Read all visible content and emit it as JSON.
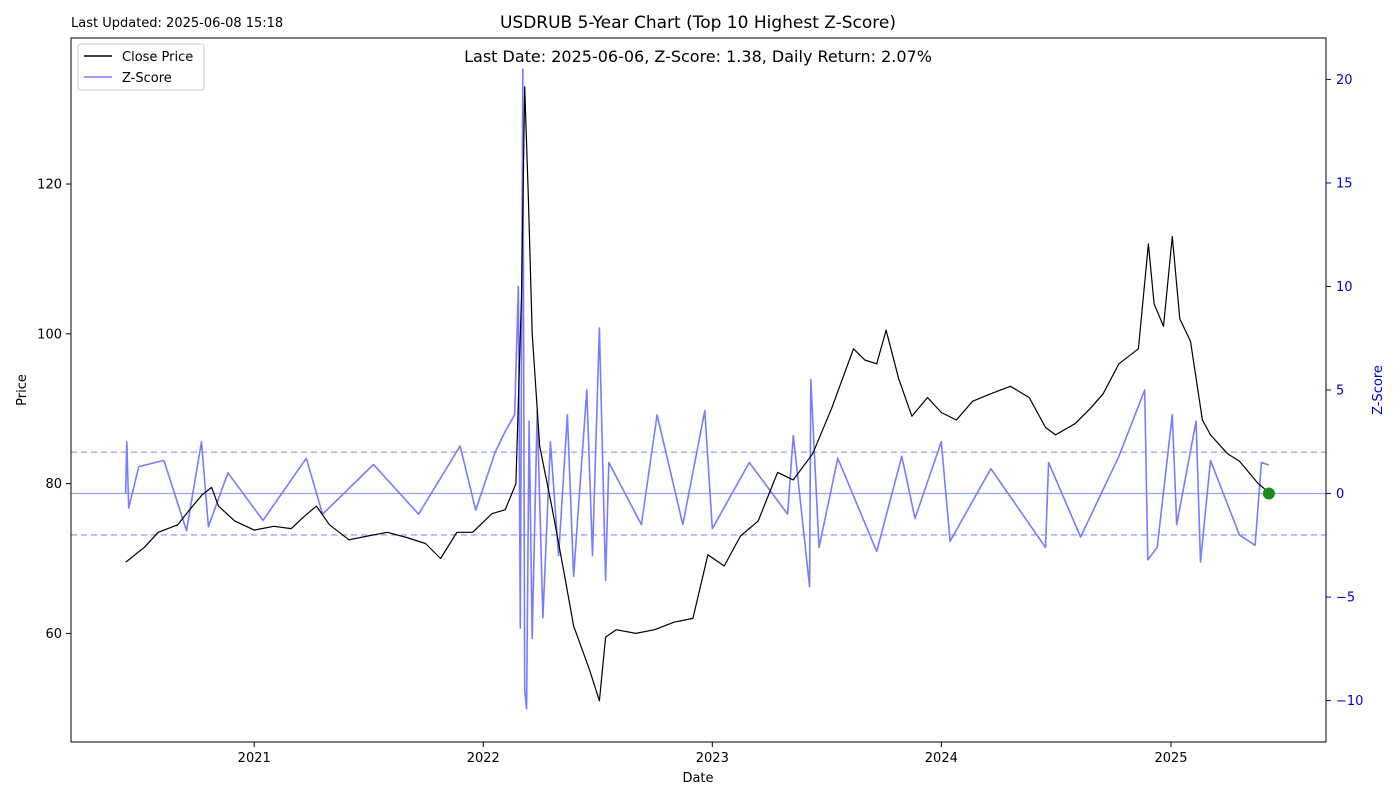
{
  "header": {
    "updated": "Last Updated: 2025-06-08 15:18",
    "title": "USDRUB 5-Year Chart (Top 10 Highest Z-Score)",
    "annotation": "Last Date: 2025-06-06, Z-Score: 1.38, Daily Return: 2.07%"
  },
  "colors": {
    "price": "#000000",
    "zscore": "#7b7bff",
    "threshold": "#9f9fff",
    "marker": "#1a8a1a",
    "right_axis": "#0000cc"
  },
  "chart_data": {
    "type": "line",
    "title": "USDRUB 5-Year Chart (Top 10 Highest Z-Score)",
    "xlabel": "Date",
    "ylabel": "Price",
    "y2label": "Z-Score",
    "x_ticks": [
      "2021",
      "2022",
      "2023",
      "2024",
      "2025"
    ],
    "x_range": [
      "2020-03-15",
      "2025-09-05"
    ],
    "ylim": [
      45.5,
      139.5
    ],
    "y_ticks": [
      60,
      80,
      100,
      120
    ],
    "y2lim": [
      -12.0,
      22.0
    ],
    "y2_ticks": [
      "−10",
      "−5",
      "0",
      "5",
      "10",
      "15",
      "20"
    ],
    "legend": {
      "placement": "top-left",
      "entries": [
        "Close Price",
        "Z-Score"
      ]
    },
    "grid": false,
    "thresholds": [
      2.0,
      0.0,
      -2.0
    ],
    "last_point": {
      "date": "2025-06-06",
      "zscore": 1.38,
      "daily_return_pct": 2.07
    },
    "series": [
      {
        "name": "Close Price",
        "axis": "left",
        "points": [
          [
            "2020-06-10",
            69.5
          ],
          [
            "2020-07-10",
            71.5
          ],
          [
            "2020-08-01",
            73.5
          ],
          [
            "2020-09-01",
            74.5
          ],
          [
            "2020-09-20",
            76.5
          ],
          [
            "2020-10-10",
            78.5
          ],
          [
            "2020-10-25",
            79.5
          ],
          [
            "2020-11-05",
            77.0
          ],
          [
            "2020-12-01",
            75.0
          ],
          [
            "2021-01-01",
            73.8
          ],
          [
            "2021-02-01",
            74.3
          ],
          [
            "2021-03-01",
            74.0
          ],
          [
            "2021-03-20",
            75.5
          ],
          [
            "2021-04-10",
            77.0
          ],
          [
            "2021-05-01",
            74.5
          ],
          [
            "2021-06-01",
            72.5
          ],
          [
            "2021-07-01",
            73.0
          ],
          [
            "2021-08-01",
            73.5
          ],
          [
            "2021-09-01",
            72.8
          ],
          [
            "2021-10-01",
            72.0
          ],
          [
            "2021-10-25",
            70.0
          ],
          [
            "2021-11-20",
            73.5
          ],
          [
            "2021-12-15",
            73.5
          ],
          [
            "2022-01-15",
            76.0
          ],
          [
            "2022-02-05",
            76.5
          ],
          [
            "2022-02-22",
            80.0
          ],
          [
            "2022-03-03",
            105.0
          ],
          [
            "2022-03-08",
            133.0
          ],
          [
            "2022-03-14",
            118.0
          ],
          [
            "2022-03-20",
            100.0
          ],
          [
            "2022-04-01",
            85.0
          ],
          [
            "2022-04-20",
            77.0
          ],
          [
            "2022-05-10",
            68.0
          ],
          [
            "2022-05-25",
            61.0
          ],
          [
            "2022-06-20",
            55.0
          ],
          [
            "2022-07-05",
            51.0
          ],
          [
            "2022-07-15",
            59.5
          ],
          [
            "2022-08-01",
            60.5
          ],
          [
            "2022-09-01",
            60.0
          ],
          [
            "2022-10-01",
            60.5
          ],
          [
            "2022-11-01",
            61.5
          ],
          [
            "2022-12-01",
            62.0
          ],
          [
            "2022-12-25",
            70.5
          ],
          [
            "2023-01-20",
            69.0
          ],
          [
            "2023-02-15",
            73.0
          ],
          [
            "2023-03-15",
            75.0
          ],
          [
            "2023-04-15",
            81.5
          ],
          [
            "2023-05-10",
            80.5
          ],
          [
            "2023-06-10",
            84.0
          ],
          [
            "2023-07-10",
            90.0
          ],
          [
            "2023-08-14",
            98.0
          ],
          [
            "2023-09-01",
            96.5
          ],
          [
            "2023-09-20",
            96.0
          ],
          [
            "2023-10-05",
            100.5
          ],
          [
            "2023-10-25",
            94.0
          ],
          [
            "2023-11-15",
            89.0
          ],
          [
            "2023-12-10",
            91.5
          ],
          [
            "2024-01-01",
            89.5
          ],
          [
            "2024-01-25",
            88.5
          ],
          [
            "2024-02-20",
            91.0
          ],
          [
            "2024-03-20",
            92.0
          ],
          [
            "2024-04-20",
            93.0
          ],
          [
            "2024-05-20",
            91.5
          ],
          [
            "2024-06-15",
            87.5
          ],
          [
            "2024-07-01",
            86.5
          ],
          [
            "2024-08-01",
            88.0
          ],
          [
            "2024-08-25",
            90.0
          ],
          [
            "2024-09-15",
            92.0
          ],
          [
            "2024-10-10",
            96.0
          ],
          [
            "2024-11-10",
            98.0
          ],
          [
            "2024-11-26",
            112.0
          ],
          [
            "2024-12-05",
            104.0
          ],
          [
            "2024-12-20",
            101.0
          ],
          [
            "2025-01-03",
            113.0
          ],
          [
            "2025-01-15",
            102.0
          ],
          [
            "2025-02-01",
            99.0
          ],
          [
            "2025-02-20",
            88.5
          ],
          [
            "2025-03-05",
            86.5
          ],
          [
            "2025-04-01",
            84.0
          ],
          [
            "2025-04-20",
            83.0
          ],
          [
            "2025-05-20",
            80.0
          ],
          [
            "2025-06-06",
            78.8
          ]
        ]
      },
      {
        "name": "Z-Score",
        "axis": "right",
        "points": [
          [
            "2020-06-10",
            0.0
          ],
          [
            "2020-06-12",
            2.5
          ],
          [
            "2020-06-15",
            -0.7
          ],
          [
            "2020-07-01",
            1.3
          ],
          [
            "2020-08-10",
            1.6
          ],
          [
            "2020-09-15",
            -1.8
          ],
          [
            "2020-10-09",
            2.5
          ],
          [
            "2020-10-20",
            -1.6
          ],
          [
            "2020-11-20",
            1.0
          ],
          [
            "2021-01-15",
            -1.3
          ],
          [
            "2021-03-25",
            1.7
          ],
          [
            "2021-04-20",
            -1.0
          ],
          [
            "2021-07-10",
            1.4
          ],
          [
            "2021-09-20",
            -1.0
          ],
          [
            "2021-11-25",
            2.3
          ],
          [
            "2021-12-20",
            -0.8
          ],
          [
            "2022-01-20",
            2.0
          ],
          [
            "2022-02-05",
            3.0
          ],
          [
            "2022-02-20",
            3.8
          ],
          [
            "2022-02-26",
            10.0
          ],
          [
            "2022-03-01",
            -6.5
          ],
          [
            "2022-03-05",
            20.5
          ],
          [
            "2022-03-08",
            -9.5
          ],
          [
            "2022-03-11",
            -10.4
          ],
          [
            "2022-03-15",
            3.5
          ],
          [
            "2022-03-20",
            -7.0
          ],
          [
            "2022-03-28",
            4.0
          ],
          [
            "2022-04-06",
            -6.0
          ],
          [
            "2022-04-18",
            2.5
          ],
          [
            "2022-05-01",
            -3.0
          ],
          [
            "2022-05-15",
            3.8
          ],
          [
            "2022-05-25",
            -4.0
          ],
          [
            "2022-06-15",
            5.0
          ],
          [
            "2022-06-24",
            -3.0
          ],
          [
            "2022-07-05",
            8.0
          ],
          [
            "2022-07-15",
            -4.2
          ],
          [
            "2022-07-20",
            1.5
          ],
          [
            "2022-09-10",
            -1.5
          ],
          [
            "2022-10-05",
            3.8
          ],
          [
            "2022-11-15",
            -1.5
          ],
          [
            "2022-12-20",
            4.0
          ],
          [
            "2023-01-01",
            -1.7
          ],
          [
            "2023-03-01",
            1.5
          ],
          [
            "2023-05-01",
            -1.0
          ],
          [
            "2023-05-10",
            2.8
          ],
          [
            "2023-06-05",
            -4.5
          ],
          [
            "2023-06-07",
            5.5
          ],
          [
            "2023-06-20",
            -2.6
          ],
          [
            "2023-07-20",
            1.7
          ],
          [
            "2023-09-20",
            -2.8
          ],
          [
            "2023-10-30",
            1.8
          ],
          [
            "2023-11-20",
            -1.2
          ],
          [
            "2024-01-01",
            2.5
          ],
          [
            "2024-01-15",
            -2.3
          ],
          [
            "2024-03-20",
            1.2
          ],
          [
            "2024-06-15",
            -2.6
          ],
          [
            "2024-06-20",
            1.5
          ],
          [
            "2024-08-10",
            -2.1
          ],
          [
            "2024-10-10",
            1.8
          ],
          [
            "2024-11-20",
            5.0
          ],
          [
            "2024-11-25",
            -3.2
          ],
          [
            "2024-12-10",
            -2.6
          ],
          [
            "2025-01-03",
            3.8
          ],
          [
            "2025-01-10",
            -1.5
          ],
          [
            "2025-02-10",
            3.5
          ],
          [
            "2025-02-17",
            -3.3
          ],
          [
            "2025-03-05",
            1.6
          ],
          [
            "2025-04-20",
            -2.0
          ],
          [
            "2025-05-15",
            -2.5
          ],
          [
            "2025-05-25",
            1.5
          ],
          [
            "2025-06-06",
            1.38
          ]
        ]
      }
    ]
  }
}
